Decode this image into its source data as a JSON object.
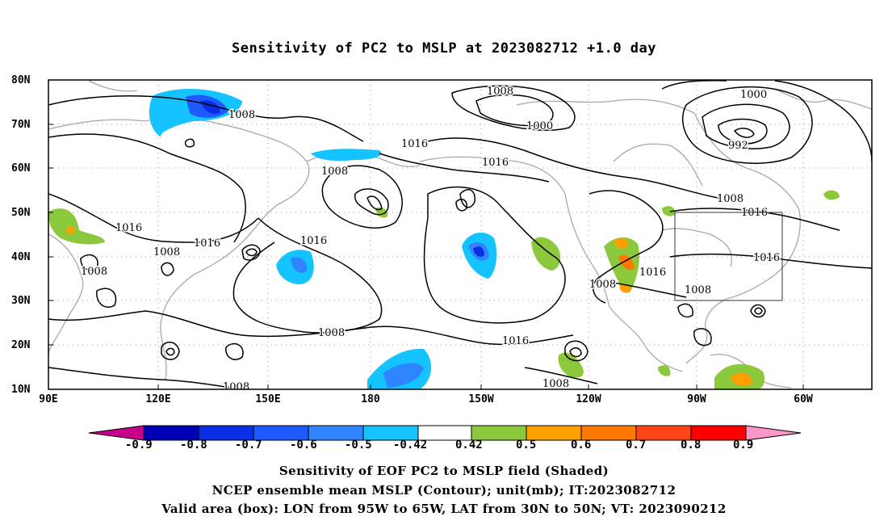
{
  "title": "Sensitivity of PC2 to MSLP at 2023082712 +1.0 day",
  "lat_labels": [
    "80N",
    "70N",
    "60N",
    "50N",
    "40N",
    "30N",
    "20N",
    "10N"
  ],
  "lon_labels": [
    "90E",
    "120E",
    "150E",
    "180",
    "150W",
    "120W",
    "90W",
    "60W"
  ],
  "contour_labels": [
    "1008",
    "1008",
    "1016",
    "1016",
    "1008",
    "1000",
    "1008",
    "1000",
    "992",
    "1008",
    "1016",
    "1016",
    "1016",
    "1008",
    "1016",
    "1016",
    "1008",
    "1008",
    "1016",
    "1008",
    "1016",
    "1008",
    "1008"
  ],
  "colorbar": {
    "labels": [
      "-0.9",
      "-0.8",
      "-0.7",
      "-0.6",
      "-0.5",
      "-0.42",
      "0.42",
      "0.5",
      "0.6",
      "0.7",
      "0.8",
      "0.9"
    ],
    "colors": [
      "#c8008c",
      "#0000b4",
      "#0a2ee6",
      "#1e5aff",
      "#2f84ff",
      "#14c3ff",
      "#ffffff",
      "#8cc83c",
      "#ffa000",
      "#ff7800",
      "#ff4614",
      "#ff0000",
      "#ff96c8"
    ]
  },
  "captions": [
    "Sensitivity of EOF PC2 to MSLP field (Shaded)",
    "NCEP ensemble mean MSLP (Contour); unit(mb); IT:2023082712",
    "Valid area (box): LON from 95W to 65W, LAT from 30N to 50N; VT: 2023090212"
  ]
}
